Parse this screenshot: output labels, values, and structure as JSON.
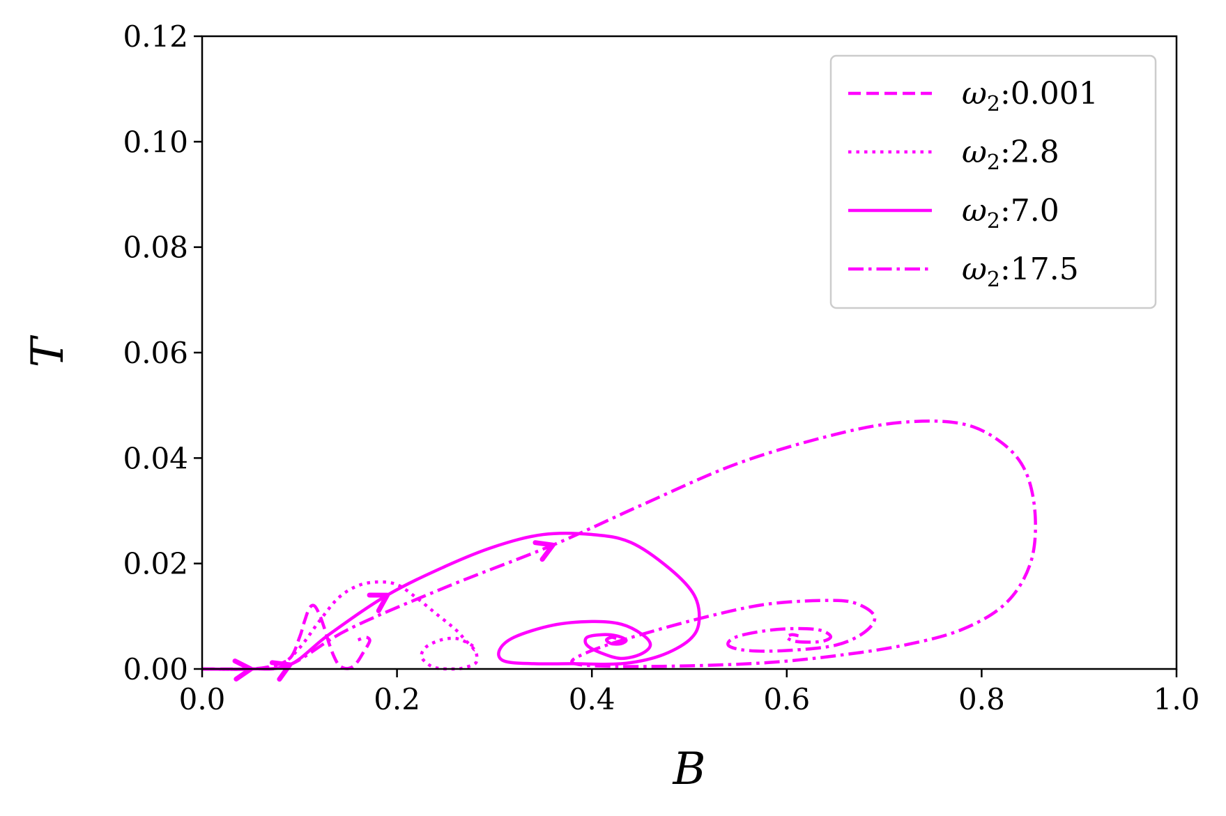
{
  "chart_data": {
    "type": "line",
    "xlabel": "B",
    "ylabel": "T",
    "xlim": [
      0,
      1.0
    ],
    "ylim": [
      0,
      0.12
    ],
    "x_ticks": [
      "0.0",
      "0.2",
      "0.4",
      "0.6",
      "0.8",
      "1.0"
    ],
    "y_ticks": [
      "0.00",
      "0.02",
      "0.04",
      "0.06",
      "0.08",
      "0.10",
      "0.12"
    ],
    "grid": false,
    "legend_position": "top-right",
    "color": "#ff00ff",
    "series": [
      {
        "name": "ω2:0.001",
        "legend_base": "ω",
        "legend_sub": "2",
        "legend_value": ":0.001",
        "style": "dashed",
        "x": [
          0.0,
          0.03,
          0.05,
          0.07,
          0.09,
          0.1,
          0.105,
          0.11,
          0.115,
          0.12,
          0.125,
          0.13,
          0.135,
          0.14,
          0.145,
          0.15,
          0.155,
          0.16,
          0.165,
          0.17,
          0.172,
          0.168,
          0.16
        ],
        "y": [
          0.0,
          0.0,
          0.0,
          0.0005,
          0.002,
          0.006,
          0.009,
          0.0115,
          0.012,
          0.0105,
          0.008,
          0.005,
          0.0025,
          0.0008,
          0.0002,
          0.0001,
          0.0005,
          0.0015,
          0.003,
          0.0045,
          0.0055,
          0.006,
          0.0055
        ],
        "arrows": [
          [
            0.05,
            0.0
          ]
        ]
      },
      {
        "name": "ω2:2.8",
        "legend_base": "ω",
        "legend_sub": "2",
        "legend_value": ":2.8",
        "style": "dotted",
        "x": [
          0.0,
          0.05,
          0.08,
          0.1,
          0.12,
          0.14,
          0.16,
          0.18,
          0.2,
          0.22,
          0.24,
          0.26,
          0.27,
          0.28,
          0.282,
          0.28,
          0.27,
          0.26,
          0.24,
          0.23,
          0.225,
          0.23,
          0.245,
          0.26,
          0.272,
          0.28,
          0.278
        ],
        "y": [
          0.0,
          0.0,
          0.0008,
          0.004,
          0.009,
          0.0135,
          0.0158,
          0.0165,
          0.016,
          0.0135,
          0.0105,
          0.0075,
          0.0055,
          0.0035,
          0.002,
          0.001,
          0.0003,
          0.0,
          0.0002,
          0.0012,
          0.0025,
          0.0042,
          0.0055,
          0.0058,
          0.005,
          0.004,
          0.0035
        ],
        "arrows": []
      },
      {
        "name": "ω2:7.0",
        "legend_base": "ω",
        "legend_sub": "2",
        "legend_value": ":7.0",
        "style": "solid",
        "x": [
          0.0,
          0.05,
          0.09,
          0.13,
          0.19,
          0.25,
          0.3,
          0.35,
          0.4,
          0.44,
          0.48,
          0.505,
          0.51,
          0.5,
          0.47,
          0.43,
          0.38,
          0.34,
          0.31,
          0.305,
          0.32,
          0.36,
          0.4,
          0.43,
          0.452,
          0.46,
          0.45,
          0.43,
          0.41,
          0.395,
          0.395,
          0.41,
          0.425,
          0.435,
          0.43,
          0.42,
          0.415,
          0.42,
          0.425
        ],
        "y": [
          0.0,
          0.0,
          0.0008,
          0.0065,
          0.014,
          0.0195,
          0.0232,
          0.0255,
          0.0255,
          0.024,
          0.019,
          0.014,
          0.009,
          0.0055,
          0.0025,
          0.001,
          0.001,
          0.001,
          0.0015,
          0.0035,
          0.006,
          0.0083,
          0.009,
          0.0085,
          0.0065,
          0.0045,
          0.0028,
          0.002,
          0.003,
          0.0045,
          0.006,
          0.0065,
          0.0063,
          0.0055,
          0.0048,
          0.0048,
          0.0055,
          0.006,
          0.0058
        ],
        "arrows": [
          [
            0.09,
            0.0008
          ],
          [
            0.19,
            0.014
          ]
        ]
      },
      {
        "name": "ω2:17.5",
        "legend_base": "ω",
        "legend_sub": "2",
        "legend_value": ":17.5",
        "style": "dashdot",
        "x": [
          0.0,
          0.05,
          0.09,
          0.15,
          0.25,
          0.36,
          0.45,
          0.55,
          0.65,
          0.72,
          0.78,
          0.82,
          0.845,
          0.855,
          0.85,
          0.825,
          0.78,
          0.72,
          0.65,
          0.58,
          0.5,
          0.42,
          0.38,
          0.4,
          0.45,
          0.52,
          0.58,
          0.64,
          0.67,
          0.69,
          0.68,
          0.65,
          0.6,
          0.56,
          0.54,
          0.55,
          0.59,
          0.63,
          0.645,
          0.635,
          0.61,
          0.6,
          0.605,
          0.612
        ],
        "y": [
          0.0,
          0.0,
          0.0008,
          0.0075,
          0.0155,
          0.0235,
          0.031,
          0.039,
          0.0445,
          0.0468,
          0.0465,
          0.043,
          0.0375,
          0.029,
          0.02,
          0.0125,
          0.0075,
          0.0045,
          0.0025,
          0.0012,
          0.0006,
          0.0005,
          0.0012,
          0.0035,
          0.0065,
          0.01,
          0.0123,
          0.013,
          0.0125,
          0.01,
          0.007,
          0.0045,
          0.0035,
          0.0035,
          0.0045,
          0.0062,
          0.0075,
          0.0075,
          0.0062,
          0.0052,
          0.0052,
          0.006,
          0.0065,
          0.0063
        ],
        "arrows": [
          [
            0.36,
            0.0235
          ]
        ]
      }
    ]
  }
}
